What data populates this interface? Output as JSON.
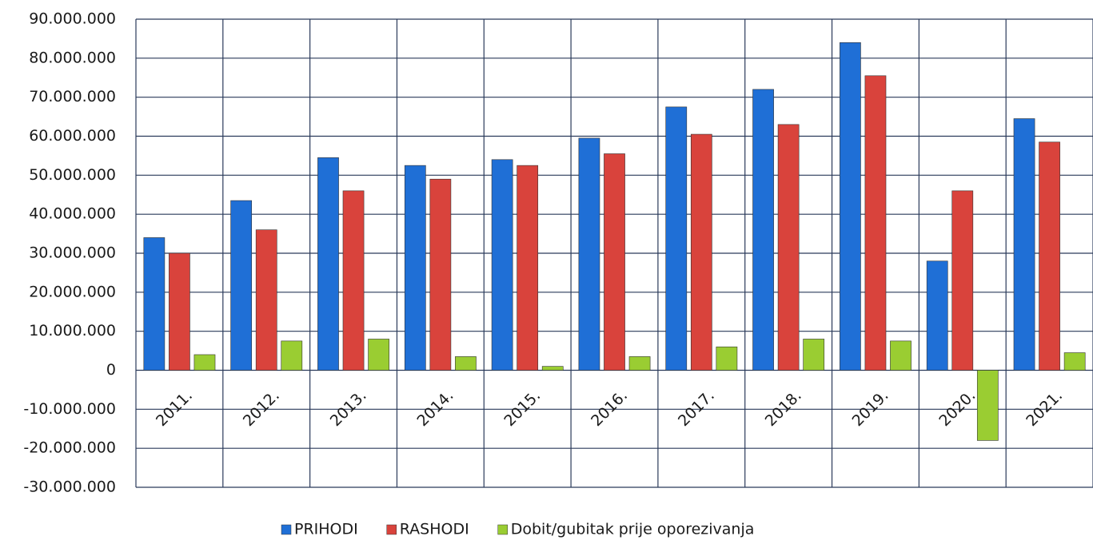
{
  "chart_data": {
    "type": "bar",
    "categories": [
      "2011.",
      "2012.",
      "2013.",
      "2014.",
      "2015.",
      "2016.",
      "2017.",
      "2018.",
      "2019.",
      "2020.",
      "2021."
    ],
    "series": [
      {
        "name": "PRIHODI",
        "color": "#1f6fd6",
        "values": [
          34000000,
          43500000,
          54500000,
          52500000,
          54000000,
          59500000,
          67500000,
          72000000,
          84000000,
          28000000,
          64500000
        ]
      },
      {
        "name": "RASHODI",
        "color": "#d9433c",
        "values": [
          30000000,
          36000000,
          46000000,
          49000000,
          52500000,
          55500000,
          60500000,
          63000000,
          75500000,
          46000000,
          58500000
        ]
      },
      {
        "name": "Dobit/gubitak prije oporezivanja",
        "color": "#9acd32",
        "values": [
          4000000,
          7500000,
          8000000,
          3500000,
          1000000,
          3500000,
          6000000,
          8000000,
          7500000,
          -18000000,
          4500000
        ]
      }
    ],
    "ylim": [
      -30000000,
      90000000
    ],
    "yticks": [
      {
        "value": -30000000,
        "label": "-30.000.000"
      },
      {
        "value": -20000000,
        "label": "-20.000.000"
      },
      {
        "value": -10000000,
        "label": "-10.000.000"
      },
      0,
      {
        "value": 10000000,
        "label": "10.000.000"
      },
      {
        "value": 20000000,
        "label": "20.000.000"
      },
      {
        "value": 30000000,
        "label": "30.000.000"
      },
      {
        "value": 40000000,
        "label": "40.000.000"
      },
      {
        "value": 50000000,
        "label": "50.000.000"
      },
      {
        "value": 60000000,
        "label": "60.000.000"
      },
      {
        "value": 70000000,
        "label": "70.000.000"
      },
      {
        "value": 80000000,
        "label": "80.000.000"
      },
      {
        "value": 90000000,
        "label": "90.000.000"
      }
    ],
    "grid": true,
    "legend": "bottom"
  }
}
